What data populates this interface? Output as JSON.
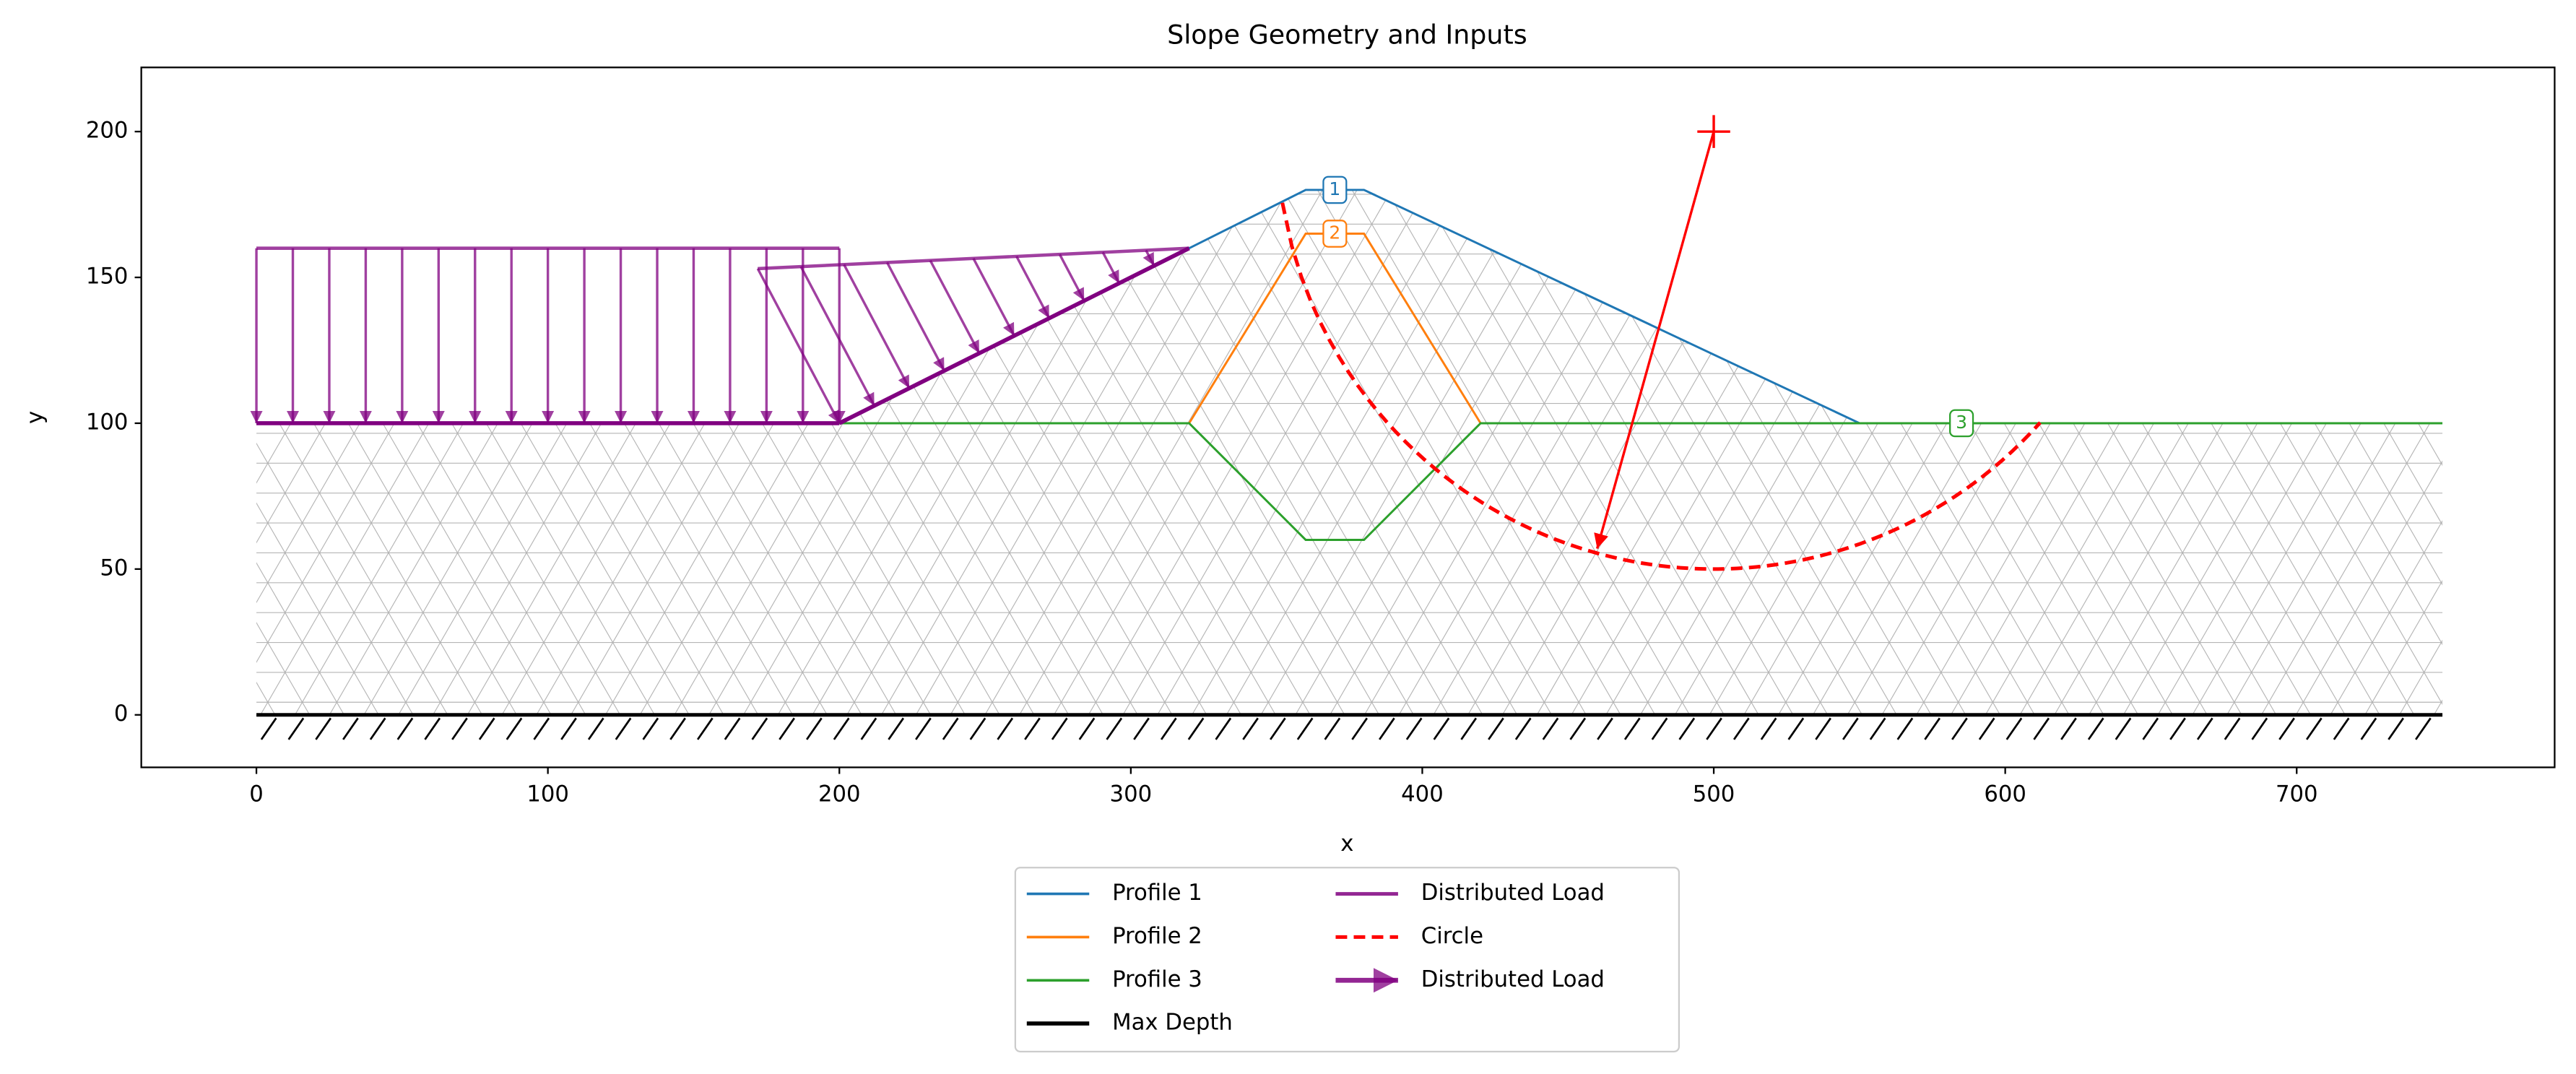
{
  "chart_data": {
    "type": "slope",
    "title": "Slope Geometry and Inputs",
    "xlabel": "x",
    "ylabel": "y",
    "xlim": [
      -39.5,
      788.5
    ],
    "ylim": [
      -18,
      222
    ],
    "xticks": [
      0,
      100,
      200,
      300,
      400,
      500,
      600,
      700
    ],
    "yticks": [
      0,
      50,
      100,
      150,
      200
    ],
    "series": [
      {
        "name": "Profile 1",
        "kind": "line",
        "color": "#1f77b4",
        "x": [
          0,
          200,
          360,
          380,
          550
        ],
        "y": [
          100,
          100,
          180,
          180,
          100
        ],
        "label": "1",
        "label_at": [
          370,
          180
        ]
      },
      {
        "name": "Profile 2",
        "kind": "line",
        "color": "#ff7f0e",
        "x": [
          320,
          360,
          380,
          420
        ],
        "y": [
          100,
          165,
          165,
          100
        ],
        "label": "2",
        "label_at": [
          370,
          165
        ]
      },
      {
        "name": "Profile 3",
        "kind": "line",
        "color": "#2ca02c",
        "x": [
          0,
          320,
          360,
          380,
          420,
          750
        ],
        "y": [
          100,
          100,
          60,
          60,
          100,
          100
        ],
        "label": "3",
        "label_at": [
          585,
          100
        ]
      },
      {
        "name": "Max Depth",
        "kind": "depth",
        "color": "#000000",
        "x": [
          0,
          750
        ],
        "y": [
          0,
          0
        ]
      },
      {
        "name": "Distributed Load",
        "kind": "load",
        "color": "#800080",
        "x": [
          0,
          200
        ],
        "y": [
          100,
          100
        ],
        "top_x": [
          0,
          200
        ],
        "top_y": [
          160,
          160
        ]
      },
      {
        "name": "Circle",
        "kind": "circle",
        "color": "#ff0000",
        "center": [
          500,
          200
        ],
        "radius": 150,
        "arc_x": [
          352,
          612
        ],
        "arrow_to": [
          460,
          57
        ]
      },
      {
        "name": "Distributed Load",
        "kind": "load",
        "legend_marker": "arrow",
        "color": "#800080",
        "x": [
          200,
          320
        ],
        "y": [
          100,
          160
        ],
        "top_x": [
          172,
          320
        ],
        "top_y": [
          153,
          160
        ]
      }
    ]
  }
}
